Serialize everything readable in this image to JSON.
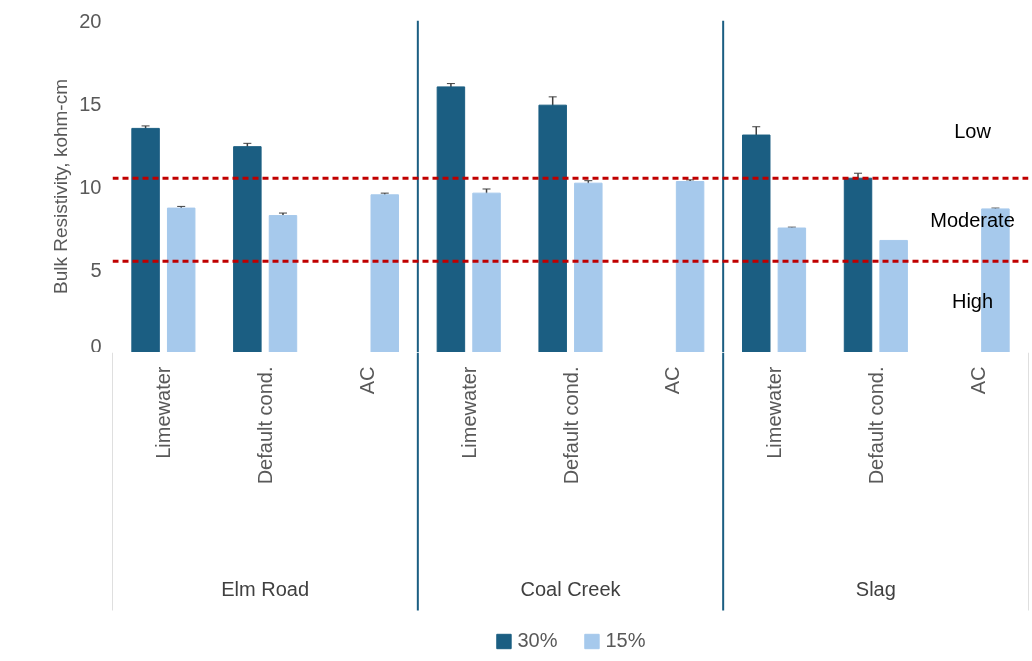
{
  "chart_data": {
    "type": "bar",
    "ylabel": "Bulk Resistivity, kohm-cm",
    "categories": [
      "Limewater",
      "Default cond.",
      "AC",
      "Limewater",
      "Default cond.",
      "AC",
      "Limewater",
      "Default cond.",
      "AC"
    ],
    "series": [
      {
        "name": "30%",
        "color": "#1b5e82",
        "values": [
          13.5,
          12.4,
          null,
          16.0,
          14.9,
          null,
          13.1,
          10.5,
          null
        ],
        "errors": [
          0.15,
          0.2,
          null,
          0.2,
          0.5,
          null,
          0.5,
          0.3,
          null
        ]
      },
      {
        "name": "15%",
        "color": "#a6c9ec",
        "values": [
          8.7,
          8.25,
          9.5,
          9.6,
          10.2,
          10.3,
          7.5,
          6.75,
          8.65
        ],
        "errors": [
          0.1,
          0.15,
          0.1,
          0.25,
          0.15,
          0.1,
          0.05,
          null,
          0.05
        ]
      }
    ],
    "ylim": [
      0,
      20
    ],
    "yticks": [
      0,
      5,
      10,
      15,
      20
    ],
    "legend": "bottom",
    "ref_lines": [
      {
        "axis": "y",
        "value": 10.5,
        "color": "#c00000",
        "line_style": "dashed"
      },
      {
        "axis": "y",
        "value": 5.5,
        "color": "#c00000",
        "line_style": "dashed"
      }
    ],
    "annotations": [
      "Elm Road",
      "Coal Creek",
      "Slag",
      "Low",
      "Moderate",
      "High"
    ]
  }
}
